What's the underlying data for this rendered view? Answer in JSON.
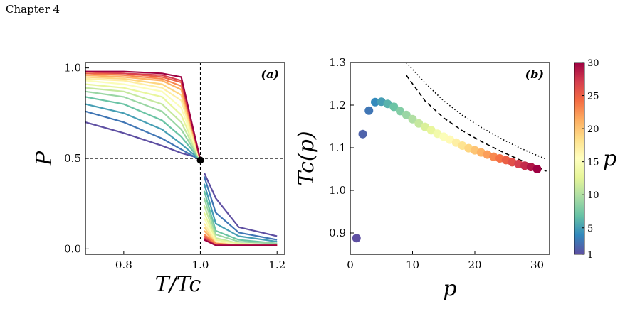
{
  "header": {
    "title": "Chapter 4"
  },
  "chart_data": [
    {
      "type": "line",
      "panel_label": "(a)",
      "xlabel": "T/T_c",
      "ylabel": "P",
      "xlim": [
        0.7,
        1.22
      ],
      "ylim": [
        -0.03,
        1.03
      ],
      "xticks": [
        0.8,
        1.0,
        1.2
      ],
      "yticks": [
        0.0,
        0.5,
        1.0
      ],
      "xtick_labels": [
        "0.8",
        "1.0",
        "1.2"
      ],
      "ytick_labels": [
        "0.0",
        "0.5",
        "1.0"
      ],
      "reference_lines": {
        "x": 1.0,
        "y": 0.5
      },
      "critical_point": {
        "x": 1.0,
        "y": 0.49
      },
      "series": [
        {
          "p": 1,
          "x": [
            0.7,
            0.8,
            0.9,
            0.95,
            1.0
          ],
          "y": [
            0.7,
            0.64,
            0.57,
            0.53,
            0.5
          ],
          "x2": [
            1.01,
            1.04,
            1.1,
            1.2
          ],
          "y2": [
            0.42,
            0.28,
            0.12,
            0.07
          ]
        },
        {
          "p": 3,
          "x": [
            0.7,
            0.8,
            0.9,
            0.95,
            1.0
          ],
          "y": [
            0.76,
            0.7,
            0.61,
            0.55,
            0.49
          ],
          "x2": [
            1.01,
            1.04,
            1.1,
            1.2
          ],
          "y2": [
            0.4,
            0.2,
            0.09,
            0.05
          ]
        },
        {
          "p": 5,
          "x": [
            0.7,
            0.8,
            0.9,
            0.95,
            1.0
          ],
          "y": [
            0.8,
            0.75,
            0.66,
            0.58,
            0.49
          ],
          "x2": [
            1.01,
            1.04,
            1.1,
            1.2
          ],
          "y2": [
            0.36,
            0.14,
            0.07,
            0.04
          ]
        },
        {
          "p": 7,
          "x": [
            0.7,
            0.8,
            0.9,
            0.95,
            1.0
          ],
          "y": [
            0.84,
            0.8,
            0.71,
            0.62,
            0.49
          ],
          "x2": [
            1.01,
            1.04,
            1.1,
            1.2
          ],
          "y2": [
            0.32,
            0.1,
            0.05,
            0.03
          ]
        },
        {
          "p": 9,
          "x": [
            0.7,
            0.8,
            0.9,
            0.95,
            1.0
          ],
          "y": [
            0.87,
            0.84,
            0.76,
            0.66,
            0.49
          ],
          "x2": [
            1.01,
            1.04,
            1.1,
            1.2
          ],
          "y2": [
            0.28,
            0.08,
            0.04,
            0.03
          ]
        },
        {
          "p": 11,
          "x": [
            0.7,
            0.8,
            0.9,
            0.95,
            1.0
          ],
          "y": [
            0.89,
            0.87,
            0.8,
            0.7,
            0.49
          ],
          "x2": [
            1.01,
            1.04,
            1.1,
            1.2
          ],
          "y2": [
            0.24,
            0.06,
            0.03,
            0.02
          ]
        },
        {
          "p": 13,
          "x": [
            0.7,
            0.8,
            0.9,
            0.95,
            1.0
          ],
          "y": [
            0.91,
            0.89,
            0.84,
            0.74,
            0.49
          ],
          "x2": [
            1.01,
            1.04,
            1.1,
            1.2
          ],
          "y2": [
            0.2,
            0.05,
            0.03,
            0.02
          ]
        },
        {
          "p": 15,
          "x": [
            0.7,
            0.8,
            0.9,
            0.95,
            1.0
          ],
          "y": [
            0.93,
            0.91,
            0.87,
            0.78,
            0.49
          ],
          "x2": [
            1.01,
            1.04,
            1.1,
            1.2
          ],
          "y2": [
            0.17,
            0.04,
            0.02,
            0.02
          ]
        },
        {
          "p": 17,
          "x": [
            0.7,
            0.8,
            0.9,
            0.95,
            1.0
          ],
          "y": [
            0.94,
            0.93,
            0.89,
            0.82,
            0.49
          ],
          "x2": [
            1.01,
            1.04,
            1.1,
            1.2
          ],
          "y2": [
            0.14,
            0.04,
            0.02,
            0.02
          ]
        },
        {
          "p": 19,
          "x": [
            0.7,
            0.8,
            0.9,
            0.95,
            1.0
          ],
          "y": [
            0.95,
            0.94,
            0.91,
            0.85,
            0.49
          ],
          "x2": [
            1.01,
            1.04,
            1.1,
            1.2
          ],
          "y2": [
            0.12,
            0.03,
            0.02,
            0.02
          ]
        },
        {
          "p": 21,
          "x": [
            0.7,
            0.8,
            0.9,
            0.95,
            1.0
          ],
          "y": [
            0.96,
            0.95,
            0.93,
            0.88,
            0.49
          ],
          "x2": [
            1.01,
            1.04,
            1.1,
            1.2
          ],
          "y2": [
            0.1,
            0.03,
            0.02,
            0.02
          ]
        },
        {
          "p": 23,
          "x": [
            0.7,
            0.8,
            0.9,
            0.95,
            1.0
          ],
          "y": [
            0.97,
            0.96,
            0.94,
            0.9,
            0.49
          ],
          "x2": [
            1.01,
            1.04,
            1.1,
            1.2
          ],
          "y2": [
            0.08,
            0.03,
            0.02,
            0.02
          ]
        },
        {
          "p": 25,
          "x": [
            0.7,
            0.8,
            0.9,
            0.95,
            1.0
          ],
          "y": [
            0.97,
            0.97,
            0.95,
            0.92,
            0.49
          ],
          "x2": [
            1.01,
            1.04,
            1.1,
            1.2
          ],
          "y2": [
            0.07,
            0.02,
            0.02,
            0.02
          ]
        },
        {
          "p": 27,
          "x": [
            0.7,
            0.8,
            0.9,
            0.95,
            1.0
          ],
          "y": [
            0.98,
            0.97,
            0.96,
            0.93,
            0.49
          ],
          "x2": [
            1.01,
            1.04,
            1.1,
            1.2
          ],
          "y2": [
            0.06,
            0.02,
            0.02,
            0.02
          ]
        },
        {
          "p": 30,
          "x": [
            0.7,
            0.8,
            0.9,
            0.95,
            1.0
          ],
          "y": [
            0.98,
            0.98,
            0.97,
            0.95,
            0.49
          ],
          "x2": [
            1.01,
            1.04,
            1.1,
            1.2
          ],
          "y2": [
            0.05,
            0.02,
            0.02,
            0.02
          ]
        }
      ]
    },
    {
      "type": "scatter",
      "panel_label": "(b)",
      "xlabel": "p",
      "ylabel": "T_c(p)",
      "xlim": [
        0,
        32
      ],
      "ylim": [
        0.85,
        1.3
      ],
      "xticks": [
        0,
        10,
        20,
        30
      ],
      "yticks": [
        0.9,
        1.0,
        1.1,
        1.2,
        1.3
      ],
      "xtick_labels": [
        "0",
        "10",
        "20",
        "30"
      ],
      "ytick_labels": [
        "0.9",
        "1.0",
        "1.1",
        "1.2",
        "1.3"
      ],
      "points": [
        {
          "p": 1,
          "Tc": 0.888
        },
        {
          "p": 2,
          "Tc": 1.132
        },
        {
          "p": 3,
          "Tc": 1.187
        },
        {
          "p": 4,
          "Tc": 1.207
        },
        {
          "p": 5,
          "Tc": 1.208
        },
        {
          "p": 6,
          "Tc": 1.203
        },
        {
          "p": 7,
          "Tc": 1.196
        },
        {
          "p": 8,
          "Tc": 1.186
        },
        {
          "p": 9,
          "Tc": 1.177
        },
        {
          "p": 10,
          "Tc": 1.167
        },
        {
          "p": 11,
          "Tc": 1.157
        },
        {
          "p": 12,
          "Tc": 1.149
        },
        {
          "p": 13,
          "Tc": 1.141
        },
        {
          "p": 14,
          "Tc": 1.133
        },
        {
          "p": 15,
          "Tc": 1.126
        },
        {
          "p": 16,
          "Tc": 1.119
        },
        {
          "p": 17,
          "Tc": 1.112
        },
        {
          "p": 18,
          "Tc": 1.105
        },
        {
          "p": 19,
          "Tc": 1.099
        },
        {
          "p": 20,
          "Tc": 1.094
        },
        {
          "p": 21,
          "Tc": 1.089
        },
        {
          "p": 22,
          "Tc": 1.084
        },
        {
          "p": 23,
          "Tc": 1.079
        },
        {
          "p": 24,
          "Tc": 1.075
        },
        {
          "p": 25,
          "Tc": 1.071
        },
        {
          "p": 26,
          "Tc": 1.066
        },
        {
          "p": 27,
          "Tc": 1.062
        },
        {
          "p": 28,
          "Tc": 1.058
        },
        {
          "p": 29,
          "Tc": 1.055
        },
        {
          "p": 30,
          "Tc": 1.05
        }
      ],
      "dashed_curve": {
        "x": [
          9,
          12,
          15,
          18,
          21,
          24,
          27,
          30,
          31.5
        ],
        "y": [
          1.27,
          1.21,
          1.17,
          1.14,
          1.115,
          1.093,
          1.073,
          1.055,
          1.045
        ]
      },
      "dotted_curve": {
        "x": [
          9,
          12,
          15,
          18,
          21,
          24,
          27,
          30,
          31.5
        ],
        "y": [
          1.3,
          1.252,
          1.21,
          1.176,
          1.148,
          1.123,
          1.101,
          1.082,
          1.073
        ]
      },
      "colorbar": {
        "label": "p",
        "min": 1,
        "max": 30,
        "ticks": [
          1,
          5,
          10,
          15,
          20,
          25,
          30
        ],
        "tick_labels": [
          "1",
          "5",
          "10",
          "15",
          "20",
          "25",
          "30"
        ],
        "colormap": "Spectral_r"
      }
    }
  ]
}
